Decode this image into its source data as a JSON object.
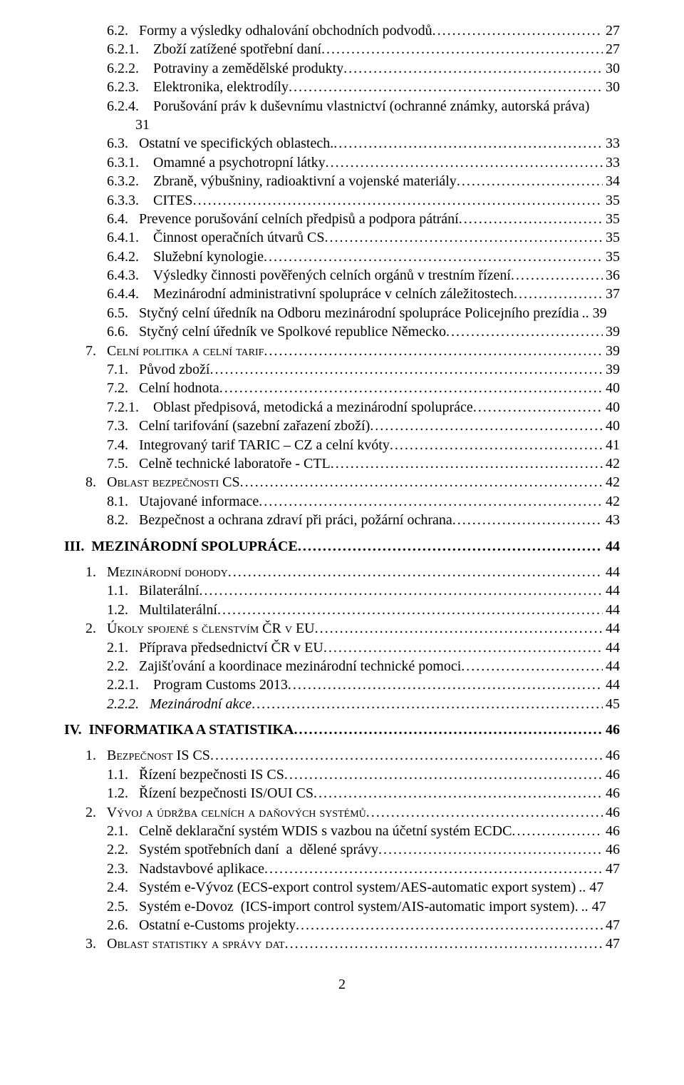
{
  "page_number": "2",
  "styles": {
    "font_family": "Times New Roman",
    "body_font_size_pt": 15,
    "text_color": "#000000",
    "background_color": "#ffffff",
    "leader_char": "."
  },
  "toc": [
    {
      "indent": "lvl4",
      "num": "6.2.",
      "title": "Formy a výsledky odhalování obchodních podvodů",
      "page": "27"
    },
    {
      "indent": "lvl5",
      "num": "6.2.1.",
      "title": "Zboží zatížené spotřební daní",
      "page": "27"
    },
    {
      "indent": "lvl5",
      "num": "6.2.2.",
      "title": "Potraviny a zemědělské produkty",
      "page": "30"
    },
    {
      "indent": "lvl5",
      "num": "6.2.3.",
      "title": "Elektronika, elektrodíly",
      "page": "30"
    },
    {
      "indent": "lvl5",
      "num": "6.2.4.",
      "title": "Porušování práv k duševnímu vlastnictví (ochranné známky, autorská práva)",
      "page": "",
      "wrap_continuation": "31"
    },
    {
      "indent": "lvl4",
      "num": "6.3.",
      "title": "Ostatní ve specifických oblastech.",
      "page": "33"
    },
    {
      "indent": "lvl5",
      "num": "6.3.1.",
      "title": "Omamné a psychotropní látky",
      "page": "33"
    },
    {
      "indent": "lvl5",
      "num": "6.3.2.",
      "title": "Zbraně, výbušniny, radioaktivní a vojenské materiály",
      "page": "34"
    },
    {
      "indent": "lvl5",
      "num": "6.3.3.",
      "title": "CITES",
      "page": "35"
    },
    {
      "indent": "lvl4",
      "num": "6.4.",
      "title": "Prevence porušování celních předpisů a podpora pátrání",
      "page": "35"
    },
    {
      "indent": "lvl5",
      "num": "6.4.1.",
      "title": "Činnost operačních útvarů CS",
      "page": "35"
    },
    {
      "indent": "lvl5",
      "num": "6.4.2.",
      "title": "Služební kynologie",
      "page": "35"
    },
    {
      "indent": "lvl5",
      "num": "6.4.3.",
      "title": "Výsledky činnosti pověřených celních orgánů v trestním řízení",
      "page": "36"
    },
    {
      "indent": "lvl5",
      "num": "6.4.4.",
      "title": "Mezinárodní administrativní spolupráce v celních záležitostech",
      "page": "37"
    },
    {
      "indent": "lvl4",
      "num": "6.5.",
      "title": "Styčný celní úředník na Odboru mezinárodní spolupráce Policejního prezídia",
      "page": "39",
      "tight": true
    },
    {
      "indent": "lvl4",
      "num": "6.6.",
      "title": "Styčný celní úředník ve Spolkové republice Německo",
      "page": "39"
    },
    {
      "indent": "lvl2",
      "num": "7.",
      "title": "Celní politika a celní tarif",
      "page": "39",
      "smallcaps": true
    },
    {
      "indent": "lvl4",
      "num": "7.1.",
      "title": "Původ zboží",
      "page": "39"
    },
    {
      "indent": "lvl4",
      "num": "7.2.",
      "title": "Celní hodnota",
      "page": "40"
    },
    {
      "indent": "lvl5",
      "num": "7.2.1.",
      "title": "Oblast předpisová, metodická a mezinárodní spolupráce",
      "page": "40"
    },
    {
      "indent": "lvl4",
      "num": "7.3.",
      "title": "Celní tarifování (sazební zařazení zboží)",
      "page": "40"
    },
    {
      "indent": "lvl4",
      "num": "7.4.",
      "title": "Integrovaný tarif TARIC – CZ a celní kvóty",
      "page": "41"
    },
    {
      "indent": "lvl4",
      "num": "7.5.",
      "title": "Celně technické laboratoře - CTL",
      "page": "42"
    },
    {
      "indent": "lvl2",
      "num": "8.",
      "title": "Oblast bezpečnosti CS",
      "page": "42",
      "smallcaps": true
    },
    {
      "indent": "lvl4",
      "num": "8.1.",
      "title": "Utajované informace",
      "page": "42"
    },
    {
      "indent": "lvl4",
      "num": "8.2.",
      "title": "Bezpečnost a ochrana zdraví při práci, požární ochrana",
      "page": "43"
    },
    {
      "indent": "lvl1",
      "num": "III.",
      "title": "MEZINÁRODNÍ SPOLUPRÁCE",
      "page": "44",
      "bold": true,
      "spacer": true
    },
    {
      "indent": "lvl2",
      "num": "1.",
      "title": "Mezinárodní dohody",
      "page": "44",
      "smallcaps": true
    },
    {
      "indent": "lvl4",
      "num": "1.1.",
      "title": "Bilaterální",
      "page": "44"
    },
    {
      "indent": "lvl4",
      "num": "1.2.",
      "title": "Multilaterální",
      "page": "44"
    },
    {
      "indent": "lvl2",
      "num": "2.",
      "title": "Úkoly spojené s členstvím ČR v EU",
      "page": "44",
      "smallcaps": true
    },
    {
      "indent": "lvl4",
      "num": "2.1.",
      "title": "Příprava předsednictví ČR v EU",
      "page": "44"
    },
    {
      "indent": "lvl4",
      "num": "2.2.",
      "title": "Zajišťování a koordinace mezinárodní technické pomoci",
      "page": "44"
    },
    {
      "indent": "lvl5",
      "num": "2.2.1.",
      "title": "Program Customs 2013",
      "page": "44"
    },
    {
      "indent": "lvl4",
      "num": "2.2.2.",
      "title": "Mezinárodní akce",
      "page": "45",
      "italic": true
    },
    {
      "indent": "lvl1",
      "num": "IV.",
      "title": "INFORMATIKA A STATISTIKA",
      "page": "46",
      "bold": true,
      "spacer": true
    },
    {
      "indent": "lvl2",
      "num": "1.",
      "title": "Bezpečnost IS CS",
      "page": "46",
      "smallcaps": true
    },
    {
      "indent": "lvl4",
      "num": "1.1.",
      "title": "Řízení bezpečnosti IS CS",
      "page": "46"
    },
    {
      "indent": "lvl4",
      "num": "1.2.",
      "title": "Řízení bezpečnosti IS/OUI CS",
      "page": "46"
    },
    {
      "indent": "lvl2",
      "num": "2.",
      "title": "Vývoj a údržba celních a daňových systémů",
      "page": "46",
      "smallcaps": true
    },
    {
      "indent": "lvl4",
      "num": "2.1.",
      "title": "Celně deklarační systém WDIS s vazbou na účetní systém ECDC",
      "page": "46"
    },
    {
      "indent": "lvl4",
      "num": "2.2.",
      "title": "Systém spotřebních daní  a  dělené správy",
      "page": "46"
    },
    {
      "indent": "lvl4",
      "num": "2.3.",
      "title": "Nadstavbové aplikace",
      "page": "47"
    },
    {
      "indent": "lvl4",
      "num": "2.4.",
      "title": "Systém e-Vývoz (ECS-export control system/AES-automatic export system)",
      "page": "47",
      "tight": true
    },
    {
      "indent": "lvl4",
      "num": "2.5.",
      "title": "Systém e-Dovoz  (ICS-import control system/AIS-automatic import system).",
      "page": "47",
      "tight": true
    },
    {
      "indent": "lvl4",
      "num": "2.6.",
      "title": "Ostatní e-Customs projekty",
      "page": "47"
    },
    {
      "indent": "lvl2",
      "num": "3.",
      "title": "Oblast statistiky a správy dat",
      "page": "47",
      "smallcaps": true
    }
  ]
}
